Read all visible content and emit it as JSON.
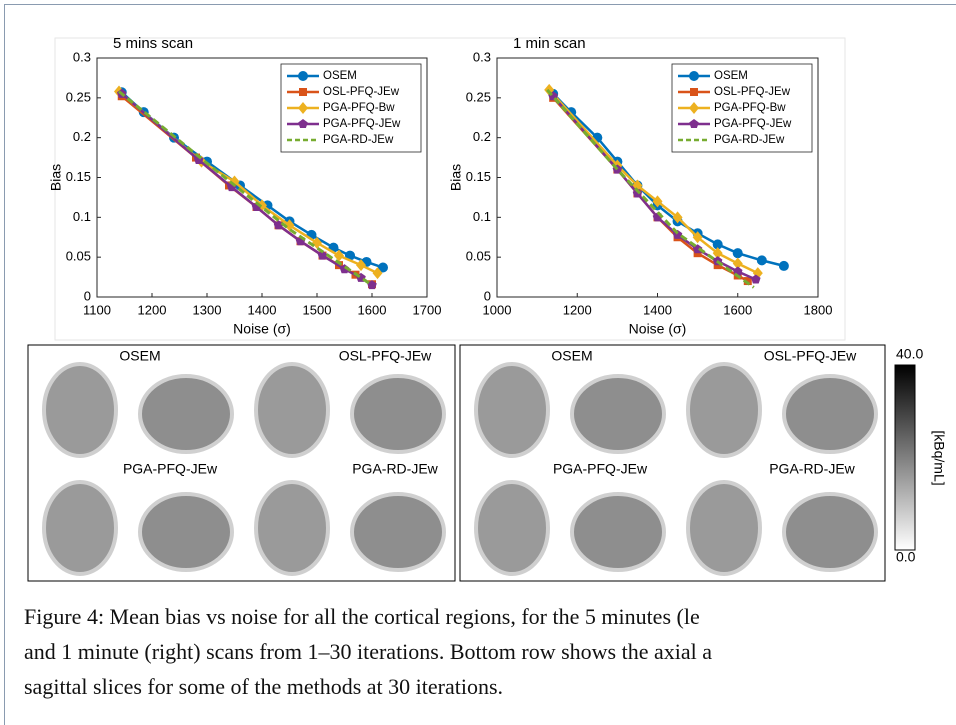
{
  "chart_data": [
    {
      "type": "line",
      "title": "5 mins scan",
      "x_label": "Noise (σ)",
      "y_label": "Bias",
      "xlim": [
        1100,
        1700
      ],
      "xticks": [
        1100,
        1200,
        1300,
        1400,
        1500,
        1600,
        1700
      ],
      "ylim": [
        0,
        0.3
      ],
      "yticks": [
        0,
        0.05,
        0.1,
        0.15,
        0.2,
        0.25,
        0.3
      ],
      "legend": "upper right",
      "series": [
        {
          "name": "OSEM",
          "color": "#0072bd",
          "marker": "o",
          "dashed": false,
          "x": [
            1145,
            1185,
            1240,
            1300,
            1360,
            1410,
            1450,
            1490,
            1530,
            1560,
            1590,
            1620
          ],
          "values": [
            0.257,
            0.232,
            0.2,
            0.17,
            0.14,
            0.115,
            0.095,
            0.078,
            0.062,
            0.052,
            0.044,
            0.037
          ]
        },
        {
          "name": "OSL-PFQ-JEw",
          "color": "#d95319",
          "marker": "s",
          "dashed": false,
          "x": [
            1145,
            1280,
            1340,
            1390,
            1430,
            1470,
            1510,
            1540,
            1570,
            1600
          ],
          "values": [
            0.252,
            0.175,
            0.14,
            0.113,
            0.09,
            0.07,
            0.052,
            0.04,
            0.028,
            0.016
          ]
        },
        {
          "name": "PGA-PFQ-Bw",
          "color": "#edb120",
          "marker": "d",
          "dashed": false,
          "x": [
            1140,
            1290,
            1350,
            1400,
            1450,
            1500,
            1540,
            1580,
            1610
          ],
          "values": [
            0.258,
            0.17,
            0.145,
            0.115,
            0.09,
            0.068,
            0.052,
            0.04,
            0.03
          ]
        },
        {
          "name": "PGA-PFQ-JEw",
          "color": "#7e2f8e",
          "marker": "p",
          "dashed": false,
          "x": [
            1145,
            1285,
            1345,
            1390,
            1430,
            1470,
            1510,
            1550,
            1580,
            1600
          ],
          "values": [
            0.255,
            0.172,
            0.138,
            0.113,
            0.09,
            0.07,
            0.052,
            0.035,
            0.024,
            0.015
          ]
        },
        {
          "name": "PGA-RD-JEw",
          "color": "#77ac30",
          "marker": "none",
          "dashed": true,
          "x": [
            1140,
            1300,
            1450,
            1600
          ],
          "values": [
            0.258,
            0.168,
            0.085,
            0.015
          ]
        }
      ]
    },
    {
      "type": "line",
      "title": "1 min scan",
      "x_label": "Noise (σ)",
      "y_label": "Bias",
      "xlim": [
        1000,
        1800
      ],
      "xticks": [
        1000,
        1200,
        1400,
        1600,
        1800
      ],
      "ylim": [
        0,
        0.3
      ],
      "yticks": [
        0,
        0.05,
        0.1,
        0.15,
        0.2,
        0.25,
        0.3
      ],
      "legend": "upper right",
      "series": [
        {
          "name": "OSEM",
          "color": "#0072bd",
          "marker": "o",
          "dashed": false,
          "x": [
            1140,
            1185,
            1250,
            1300,
            1350,
            1400,
            1450,
            1500,
            1550,
            1600,
            1660,
            1715
          ],
          "values": [
            0.255,
            0.232,
            0.2,
            0.17,
            0.14,
            0.115,
            0.095,
            0.08,
            0.066,
            0.055,
            0.046,
            0.039
          ]
        },
        {
          "name": "OSL-PFQ-JEw",
          "color": "#d95319",
          "marker": "s",
          "dashed": false,
          "x": [
            1140,
            1300,
            1350,
            1400,
            1450,
            1500,
            1550,
            1600,
            1625
          ],
          "values": [
            0.25,
            0.16,
            0.13,
            0.1,
            0.075,
            0.055,
            0.04,
            0.027,
            0.02
          ]
        },
        {
          "name": "PGA-PFQ-Bw",
          "color": "#edb120",
          "marker": "d",
          "dashed": false,
          "x": [
            1130,
            1300,
            1350,
            1400,
            1450,
            1500,
            1550,
            1600,
            1650
          ],
          "values": [
            0.26,
            0.165,
            0.14,
            0.12,
            0.1,
            0.075,
            0.055,
            0.042,
            0.03
          ]
        },
        {
          "name": "PGA-PFQ-JEw",
          "color": "#7e2f8e",
          "marker": "p",
          "dashed": false,
          "x": [
            1140,
            1300,
            1350,
            1400,
            1450,
            1500,
            1550,
            1600,
            1645
          ],
          "values": [
            0.252,
            0.16,
            0.13,
            0.1,
            0.078,
            0.06,
            0.045,
            0.032,
            0.022
          ]
        },
        {
          "name": "PGA-RD-JEw",
          "color": "#77ac30",
          "marker": "none",
          "dashed": true,
          "x": [
            1125,
            1300,
            1450,
            1640
          ],
          "values": [
            0.26,
            0.16,
            0.08,
            0.012
          ]
        }
      ]
    }
  ],
  "image_panels": [
    {
      "labels": [
        "OSEM",
        "OSL-PFQ-JEw",
        "PGA-PFQ-JEw",
        "PGA-RD-JEw"
      ]
    },
    {
      "labels": [
        "OSEM",
        "OSL-PFQ-JEw",
        "PGA-PFQ-JEw",
        "PGA-RD-JEw"
      ]
    }
  ],
  "colorbar": {
    "max": "40.0",
    "min": "0.0",
    "unit": "[kBq/mL]"
  },
  "caption": [
    "Figure 4: Mean bias vs noise for all the cortical regions, for the 5 minutes (le",
    "and 1 minute (right) scans from 1–30 iterations. Bottom row shows the axial a",
    "sagittal slices for some of the methods at 30 iterations."
  ]
}
